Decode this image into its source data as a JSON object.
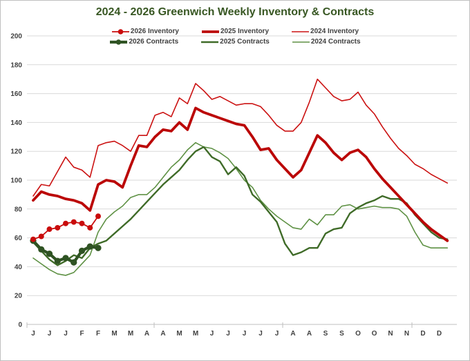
{
  "window": {
    "background": "#FFFFFF",
    "border_color": "#BFBFBF"
  },
  "chart_data": {
    "type": "line",
    "title": "2024 - 2026 Greenwich Weekly Inventory & Contracts",
    "title_color": "#385723",
    "x_axis": {
      "description": "52 weekly categories, labeled every other week with month initial",
      "tick_labels": [
        "J",
        "J",
        "J",
        "F",
        "F",
        "M",
        "M",
        "A",
        "A",
        "M",
        "M",
        "J",
        "J",
        "J",
        "J",
        "J",
        "A",
        "A",
        "S",
        "S",
        "O",
        "O",
        "N",
        "N",
        "D",
        "D"
      ],
      "tick_weeks": [
        1,
        3,
        5,
        7,
        9,
        11,
        13,
        15,
        17,
        19,
        21,
        23,
        25,
        27,
        29,
        31,
        33,
        35,
        37,
        39,
        41,
        43,
        45,
        47,
        49,
        51
      ],
      "label_color": "#404040"
    },
    "y_axis": {
      "min": 0,
      "max": 200,
      "step": 20,
      "tick_labels": [
        "0",
        "20",
        "40",
        "60",
        "80",
        "100",
        "120",
        "140",
        "160",
        "180",
        "200"
      ],
      "label_color": "#404040"
    },
    "grid_on": true,
    "grid_color": "#D9D9D9",
    "axis_line_color": "#BFBFBF",
    "legend_position": "top-center-two-rows",
    "series": [
      {
        "name": "2024 Contracts",
        "color": "#5E9144",
        "stroke_width": 1.6,
        "markers": false,
        "legend_row": 2,
        "legend_col": 3,
        "start_week": 1,
        "values": [
          46,
          42,
          38,
          35,
          34,
          36,
          42,
          48,
          64,
          73,
          78,
          82,
          88,
          90,
          90,
          95,
          102,
          109,
          114,
          121,
          126,
          123,
          122,
          119,
          115,
          108,
          100,
          95,
          86,
          80,
          75,
          71,
          67,
          66,
          73,
          69,
          76,
          76,
          82,
          83,
          80,
          81,
          82,
          81,
          81,
          80,
          75,
          64,
          55,
          53,
          53,
          53
        ]
      },
      {
        "name": "2025 Contracts",
        "color": "#3F6B28",
        "stroke_width": 2.4,
        "markers": false,
        "legend_row": 2,
        "legend_col": 2,
        "start_week": 1,
        "values": [
          57,
          51,
          45,
          41,
          44,
          48,
          46,
          53,
          56,
          58,
          63,
          68,
          73,
          79,
          85,
          91,
          97,
          102,
          107,
          114,
          120,
          123,
          116,
          113,
          104,
          109,
          103,
          90,
          85,
          78,
          71,
          56,
          48,
          50,
          53,
          53,
          63,
          66,
          67,
          77,
          81,
          84,
          86,
          89,
          87,
          87,
          84,
          76,
          70,
          64,
          60,
          59
        ]
      },
      {
        "name": "2024 Inventory",
        "color": "#CB1111",
        "stroke_width": 1.6,
        "markers": false,
        "legend_row": 1,
        "legend_col": 3,
        "start_week": 1,
        "values": [
          89,
          97,
          96,
          106,
          116,
          109,
          107,
          102,
          124,
          126,
          127,
          124,
          120,
          131,
          131,
          145,
          147,
          144,
          157,
          153,
          167,
          162,
          156,
          158,
          155,
          152,
          153,
          153,
          151,
          145,
          138,
          134,
          134,
          140,
          154,
          170,
          164,
          158,
          155,
          156,
          161,
          152,
          146,
          137,
          129,
          122,
          117,
          111,
          108,
          104,
          101,
          98
        ]
      },
      {
        "name": "2025 Inventory",
        "color": "#BB0606",
        "stroke_width": 3.8,
        "markers": false,
        "legend_row": 1,
        "legend_col": 2,
        "start_week": 1,
        "values": [
          86,
          92,
          90,
          89,
          87,
          86,
          84,
          79,
          97,
          100,
          99,
          95,
          110,
          124,
          123,
          130,
          135,
          134,
          140,
          135,
          150,
          147,
          145,
          143,
          141,
          139,
          138,
          130,
          121,
          122,
          114,
          108,
          102,
          107,
          119,
          131,
          126,
          119,
          114,
          119,
          121,
          116,
          108,
          101,
          95,
          89,
          83,
          77,
          71,
          66,
          62,
          58
        ]
      },
      {
        "name": "2026 Contracts",
        "color": "#2F5323",
        "stroke_width": 4.2,
        "markers": true,
        "marker_radius": 4.6,
        "legend_row": 2,
        "legend_col": 1,
        "start_week": 1,
        "values": [
          58,
          52,
          49,
          44,
          46,
          43,
          51,
          54,
          53
        ]
      },
      {
        "name": "2026 Inventory",
        "color": "#C90B0B",
        "stroke_width": 1.8,
        "markers": true,
        "marker_radius": 4.0,
        "legend_row": 1,
        "legend_col": 1,
        "start_week": 1,
        "values": [
          59,
          61,
          66,
          67,
          70,
          71,
          70,
          67,
          75
        ]
      }
    ]
  }
}
